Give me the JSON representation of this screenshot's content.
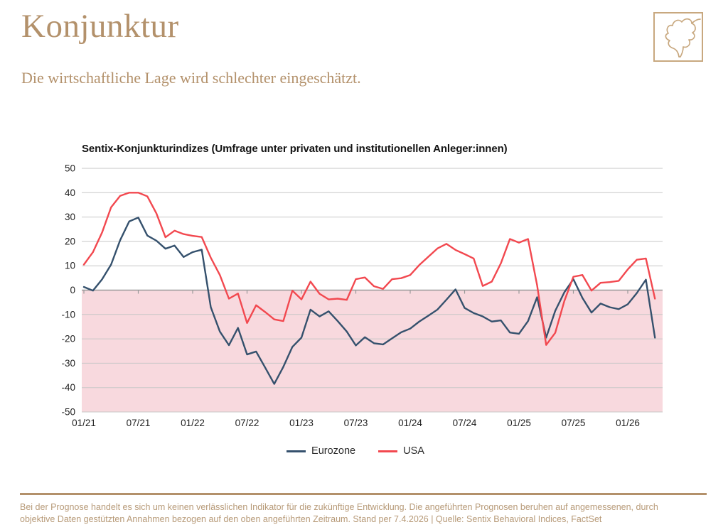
{
  "header": {
    "title": "Konjunktur",
    "subtitle": "Die wirtschaftliche Lage wird schlechter eingeschätzt."
  },
  "icons": {
    "logo": "leaf-outline-sketch"
  },
  "chart": {
    "title": "Sentix-Konjunkturindizes (Umfrage unter privaten und institutionellen Anleger:innen)"
  },
  "chart_data": {
    "type": "line",
    "title": "Sentix-Konjunkturindizes (Umfrage unter privaten und institutionellen Anleger:innen)",
    "x_frequency": "monthly",
    "x_start": "01/21",
    "x_end": "04/26",
    "x_tick_labels": [
      "01/21",
      "07/21",
      "01/22",
      "07/22",
      "01/23",
      "07/23",
      "01/24",
      "07/24",
      "01/25",
      "07/25",
      "01/26"
    ],
    "tick_every": 6,
    "ylim": [
      -50,
      50
    ],
    "y_ticks": [
      50,
      40,
      30,
      20,
      10,
      0,
      -10,
      -20,
      -30,
      -40,
      -50
    ],
    "grid": true,
    "negative_region_shaded": true,
    "legend_position": "bottom-center",
    "series": [
      {
        "name": "Eurozone",
        "color": "#35516d",
        "values": [
          1.3,
          -0.2,
          4.4,
          10.5,
          20.5,
          28.2,
          29.8,
          22.4,
          20.3,
          17.0,
          18.3,
          13.6,
          15.6,
          16.6,
          -7.0,
          -17.0,
          -22.6,
          -15.5,
          -26.4,
          -25.2,
          -31.8,
          -38.5,
          -31.5,
          -23.3,
          -19.5,
          -8.0,
          -10.8,
          -8.7,
          -12.7,
          -17.0,
          -22.7,
          -19.3,
          -21.8,
          -22.3,
          -19.8,
          -17.3,
          -15.8,
          -12.9,
          -10.5,
          -8.0,
          -3.9,
          0.3,
          -7.3,
          -9.4,
          -10.8,
          -12.9,
          -12.4,
          -17.4,
          -17.9,
          -12.7,
          -2.9,
          -19.5,
          -8.5,
          -0.9,
          4.5,
          -3.2,
          -9.2,
          -5.5,
          -7.0,
          -7.8,
          -5.8,
          -1.2,
          4.3,
          -19.5
        ]
      },
      {
        "name": "USA",
        "color": "#f2484f",
        "values": [
          10.5,
          15.6,
          23.6,
          34.0,
          38.7,
          40.0,
          40.0,
          38.5,
          31.5,
          21.7,
          24.4,
          23.0,
          22.3,
          21.8,
          13.3,
          6.2,
          -3.5,
          -1.4,
          -13.5,
          -6.2,
          -9.0,
          -12.0,
          -12.7,
          -0.2,
          -3.8,
          3.5,
          -1.5,
          -3.8,
          -3.5,
          -4.0,
          4.5,
          5.2,
          1.6,
          0.5,
          4.5,
          4.9,
          6.2,
          10.3,
          13.7,
          17.1,
          19.0,
          16.5,
          14.8,
          13.0,
          1.7,
          3.5,
          11.0,
          21.0,
          19.5,
          21.0,
          2.0,
          -22.5,
          -17.5,
          -4.5,
          5.5,
          6.2,
          -0.2,
          3.0,
          3.3,
          3.8,
          8.5,
          12.5,
          13.0,
          -3.5
        ]
      }
    ]
  },
  "colors": {
    "accent_tan": "#b3916b",
    "eurozone_blue": "#35516d",
    "usa_red": "#f2484f",
    "negative_fill": "#f8d9de",
    "gridline": "#c7c7c7",
    "zero_line": "#9a9a9a"
  },
  "footer": {
    "line1": "Bei der Prognose handelt es sich um keinen verlässlichen Indikator für die zukünftige Entwicklung. Die angeführten Prognosen beruhen auf angemessenen, durch",
    "line2": "objektive Daten gestützten Annahmen bezogen auf den oben angeführten Zeitraum. Stand per 7.4.2026 | Quelle: Sentix Behavioral Indices, FactSet"
  }
}
